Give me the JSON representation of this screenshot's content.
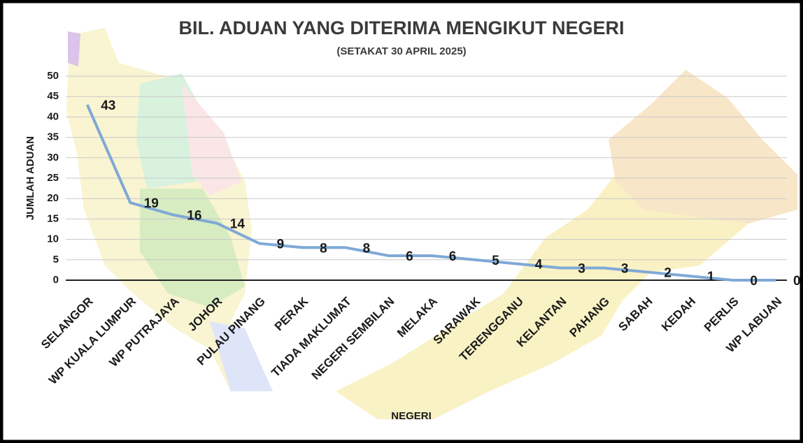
{
  "chart_data": {
    "type": "line",
    "title": "BIL. ADUAN YANG DITERIMA MENGIKUT NEGERI",
    "subtitle": "(SETAKAT 30 APRIL 2025)",
    "y_label": "JUMLAH ADUAN",
    "x_label": "NEGERI",
    "categories": [
      "SELANGOR",
      "WP KUALA LUMPUR",
      "WP PUTRAJAYA",
      "JOHOR",
      "PULAU PINANG",
      "PERAK",
      "TIADA MAKLUMAT",
      "NEGERI SEMBILAN",
      "MELAKA",
      "SARAWAK",
      "TERENGGANU",
      "KELANTAN",
      "PAHANG",
      "SABAH",
      "KEDAH",
      "PERLIS",
      "WP LABUAN"
    ],
    "series": [
      {
        "name": "JUMLAH ADUAN",
        "color": "#7fa9d6",
        "values": [
          43,
          19,
          16,
          14,
          9,
          8,
          8,
          6,
          6,
          5,
          4,
          3,
          3,
          2,
          1,
          0,
          0
        ]
      }
    ],
    "ylim": [
      0,
      50
    ],
    "yticks": [
      0,
      5,
      10,
      15,
      20,
      25,
      30,
      35,
      40,
      45,
      50
    ],
    "grid": true
  }
}
